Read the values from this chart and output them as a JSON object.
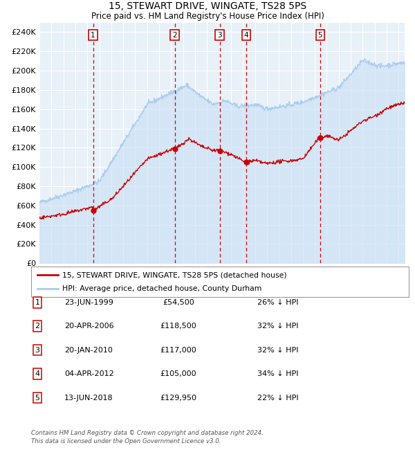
{
  "title": "15, STEWART DRIVE, WINGATE, TS28 5PS",
  "subtitle": "Price paid vs. HM Land Registry's House Price Index (HPI)",
  "legend_property": "15, STEWART DRIVE, WINGATE, TS28 5PS (detached house)",
  "legend_hpi": "HPI: Average price, detached house, County Durham",
  "footer1": "Contains HM Land Registry data © Crown copyright and database right 2024.",
  "footer2": "This data is licensed under the Open Government Licence v3.0.",
  "hpi_color": "#aaccee",
  "hpi_fill_color": "#c8dff5",
  "property_color": "#cc0000",
  "plot_bg": "#e8f0f8",
  "grid_color": "#ffffff",
  "dashed_color": "#cc0000",
  "ylim": [
    0,
    250000
  ],
  "yticks": [
    0,
    20000,
    40000,
    60000,
    80000,
    100000,
    120000,
    140000,
    160000,
    180000,
    200000,
    220000,
    240000
  ],
  "sales": [
    {
      "label": "1",
      "date_num": 1999.48,
      "price": 54500
    },
    {
      "label": "2",
      "date_num": 2006.3,
      "price": 118500
    },
    {
      "label": "3",
      "date_num": 2010.05,
      "price": 117000
    },
    {
      "label": "4",
      "date_num": 2012.26,
      "price": 105000
    },
    {
      "label": "5",
      "date_num": 2018.44,
      "price": 129950
    }
  ],
  "table_rows": [
    {
      "num": "1",
      "date": "23-JUN-1999",
      "price": "£54,500",
      "note": "26% ↓ HPI"
    },
    {
      "num": "2",
      "date": "20-APR-2006",
      "price": "£118,500",
      "note": "32% ↓ HPI"
    },
    {
      "num": "3",
      "date": "20-JAN-2010",
      "price": "£117,000",
      "note": "32% ↓ HPI"
    },
    {
      "num": "4",
      "date": "04-APR-2012",
      "price": "£105,000",
      "note": "34% ↓ HPI"
    },
    {
      "num": "5",
      "date": "13-JUN-2018",
      "price": "£129,950",
      "note": "22% ↓ HPI"
    }
  ]
}
